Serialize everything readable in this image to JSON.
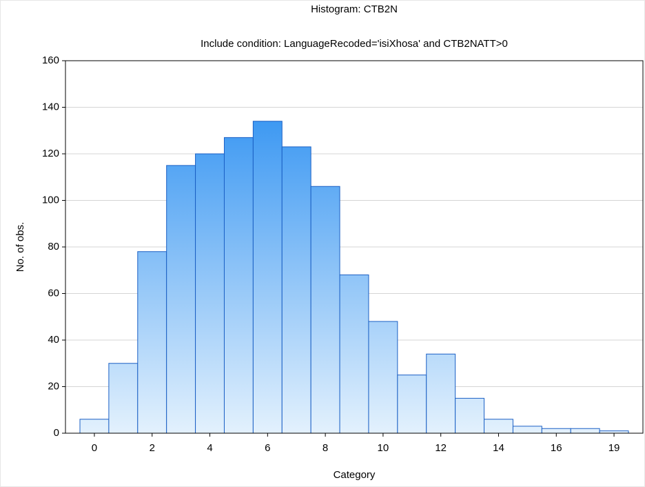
{
  "chart_data": {
    "type": "bar",
    "title": "Histogram: CTB2N",
    "subtitle": "Include condition: LanguageRecoded='isiXhosa' and CTB2NATT>0",
    "x_label": "Category",
    "y_label": "No. of obs.",
    "categories": [
      "0",
      null,
      "2",
      null,
      "4",
      null,
      "6",
      null,
      "8",
      null,
      "10",
      null,
      "12",
      null,
      "14",
      null,
      "16",
      null,
      "19"
    ],
    "values": [
      6,
      30,
      78,
      115,
      120,
      127,
      134,
      123,
      106,
      68,
      48,
      25,
      34,
      15,
      6,
      3,
      2,
      2,
      1
    ],
    "color": "#1e88f0",
    "color_light": "#e3f1fd",
    "edge_color": "#1a5fc4",
    "ylim": [
      0,
      160
    ],
    "yticks": [
      0,
      20,
      40,
      60,
      80,
      100,
      120,
      140,
      160
    ],
    "grid": true
  }
}
